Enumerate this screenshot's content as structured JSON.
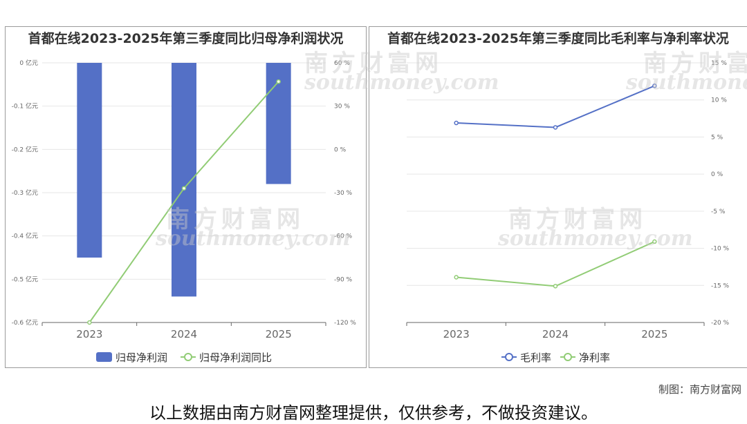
{
  "credit": "制图：南方财富网",
  "disclaimer": "以上数据由南方财富网整理提供，仅供参考，不做投资建议。",
  "watermark": {
    "brand": "南方财富网",
    "site": "southmoney.com"
  },
  "chart_data": [
    {
      "type": "bar",
      "title": "首都在线2023-2025年第三季度同比归母净利润状况",
      "categories": [
        "2023",
        "2024",
        "2025"
      ],
      "series": [
        {
          "name": "归母净利润",
          "type": "bar",
          "axis": "left",
          "values": [
            -0.45,
            -0.54,
            -0.28
          ],
          "color": "#5470c6"
        },
        {
          "name": "归母净利润同比",
          "type": "line",
          "axis": "right",
          "values": [
            -120,
            -27,
            47
          ],
          "color": "#91cc75"
        }
      ],
      "left_axis": {
        "min": -0.6,
        "max": 0,
        "ticks": [
          0,
          -0.1,
          -0.2,
          -0.3,
          -0.4,
          -0.5,
          -0.6
        ],
        "labels": [
          "0 亿元",
          "-0.1 亿元",
          "-0.2 亿元",
          "-0.3 亿元",
          "-0.4 亿元",
          "-0.5 亿元",
          "-0.6 亿元"
        ]
      },
      "right_axis": {
        "min": -120,
        "max": 60,
        "ticks": [
          60,
          30,
          0,
          -30,
          -60,
          -90,
          -120
        ],
        "labels": [
          "60 %",
          "30 %",
          "0 %",
          "-30 %",
          "-60 %",
          "-90 %",
          "-120 %"
        ]
      },
      "grid": true,
      "legend": "bottom"
    },
    {
      "type": "line",
      "title": "首都在线2023-2025年第三季度同比毛利率与净利率状况",
      "categories": [
        "2023",
        "2024",
        "2025"
      ],
      "series": [
        {
          "name": "毛利率",
          "values": [
            6.9,
            6.3,
            11.9
          ],
          "color": "#5470c6"
        },
        {
          "name": "净利率",
          "values": [
            -13.9,
            -15.1,
            -9.1
          ],
          "color": "#91cc75"
        }
      ],
      "right_axis": {
        "min": -20,
        "max": 15,
        "ticks": [
          15,
          10,
          5,
          0,
          -5,
          -10,
          -15,
          -20
        ],
        "labels": [
          "15 %",
          "10 %",
          "5 %",
          "0 %",
          "-5 %",
          "-10 %",
          "-15 %",
          "-20 %"
        ]
      },
      "grid": true,
      "legend": "bottom"
    }
  ]
}
